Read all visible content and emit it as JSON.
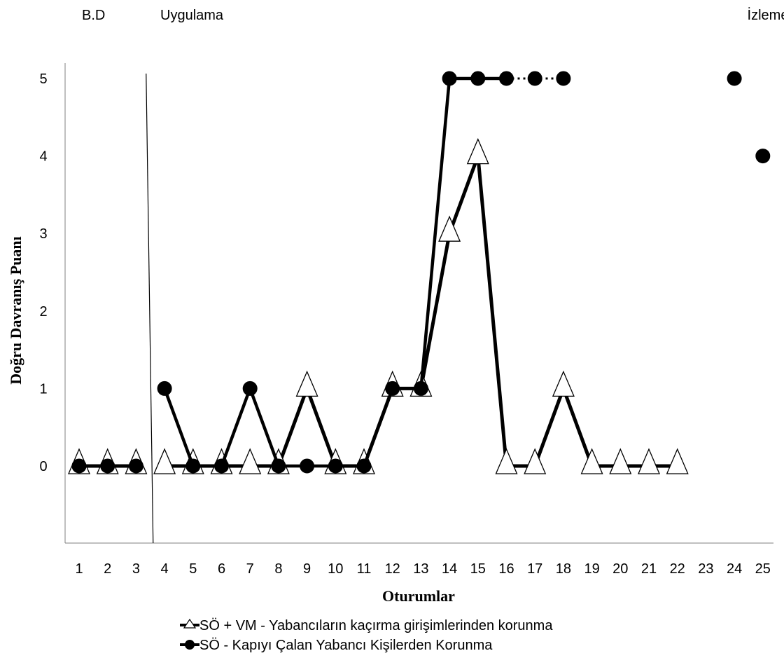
{
  "chart_data": {
    "type": "line",
    "xlabel": "Oturumlar",
    "ylabel": "Doğru Davranış Puanı",
    "ylim": [
      -1,
      5
    ],
    "yticks": [
      0,
      1,
      2,
      3,
      4,
      5
    ],
    "categories": [
      "1",
      "2",
      "3",
      "4",
      "5",
      "6",
      "7",
      "8",
      "9",
      "10",
      "11",
      "12",
      "13",
      "14",
      "15",
      "16",
      "17",
      "18",
      "19",
      "20",
      "21",
      "22",
      "23",
      "24",
      "25"
    ],
    "phase_labels": [
      "B.D",
      "Uygulama",
      "İzleme"
    ],
    "phase_change_after_session": 3,
    "grid": false,
    "legend_position": "bottom",
    "series": [
      {
        "name": "SÖ + VM - Yabancıların kaçırma girişimlerinden korunma",
        "marker": "triangle",
        "color": "#000000",
        "values": [
          0,
          0,
          0,
          0,
          0,
          0,
          0,
          0,
          1,
          0,
          0,
          1,
          1,
          3,
          4,
          0,
          0,
          1,
          0,
          0,
          0,
          0,
          null,
          null,
          null
        ],
        "segments": [
          [
            1,
            3
          ],
          [
            4,
            22
          ]
        ]
      },
      {
        "name": "SÖ - Kapıyı Çalan Yabancı Kişilerden Korunma",
        "marker": "circle",
        "color": "#000000",
        "values": [
          0,
          0,
          0,
          1,
          0,
          0,
          1,
          0,
          0,
          0,
          0,
          1,
          1,
          5,
          5,
          5,
          5,
          5,
          null,
          null,
          null,
          null,
          null,
          5,
          4
        ],
        "segments": [
          [
            1,
            3
          ],
          [
            4,
            16
          ]
        ],
        "dotted_segments": [
          [
            16,
            18
          ]
        ]
      }
    ]
  }
}
